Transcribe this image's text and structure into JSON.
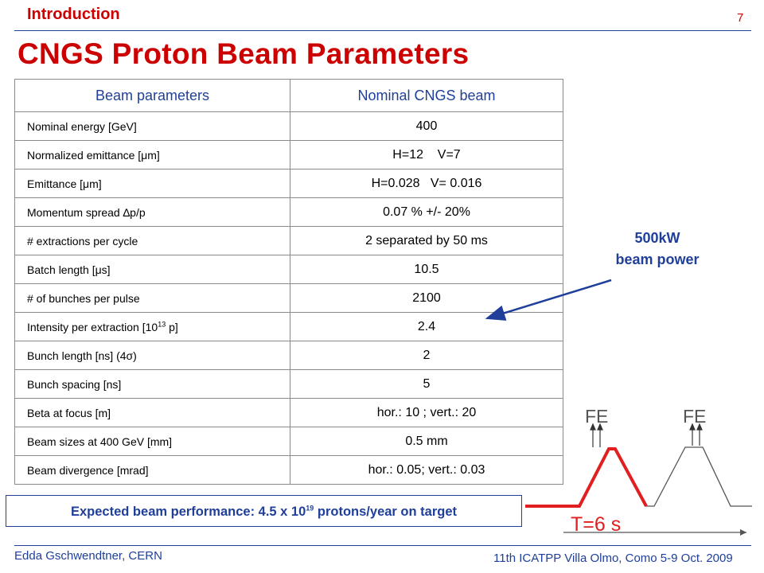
{
  "header": {
    "section": "Introduction",
    "page_number": "7",
    "title": "CNGS Proton Beam Parameters"
  },
  "table": {
    "columns": [
      "Beam parameters",
      "Nominal CNGS beam"
    ],
    "rows": [
      {
        "name": "Nominal energy [GeV]",
        "value": "400"
      },
      {
        "name": "Normalized emittance [μm]",
        "value": "H=12    V=7"
      },
      {
        "name": "Emittance [μm]",
        "value": "H=0.028   V= 0.016"
      },
      {
        "name": "Momentum spread ∆p/p",
        "value": "0.07 % +/- 20%"
      },
      {
        "name": "# extractions per cycle",
        "value": "2 separated by 50 ms"
      },
      {
        "name": "Batch length [μs]",
        "value": "10.5"
      },
      {
        "name": "# of bunches per pulse",
        "value": "2100"
      },
      {
        "name_pre": "Intensity per extraction [10",
        "name_sup": "13",
        "name_post": " p]",
        "value": "2.4"
      },
      {
        "name": "Bunch length [ns] (4σ)",
        "value": "2"
      },
      {
        "name": "Bunch spacing [ns]",
        "value": "5"
      },
      {
        "name": "Beta at focus [m]",
        "value": "hor.: 10 ; vert.: 20"
      },
      {
        "name": "Beam sizes at 400 GeV [mm]",
        "value": "0.5 mm"
      },
      {
        "name": "Beam divergence  [mrad]",
        "value": "hor.: 0.05; vert.: 0.03"
      }
    ]
  },
  "callout": {
    "line1": "500kW",
    "line2": "beam power"
  },
  "performance": {
    "text_pre": "Expected beam performance: 4.5 x 10",
    "sup": "19",
    "text_post": " protons/year on target"
  },
  "cycle_diagram": {
    "label_fe_1": "FE",
    "label_fe_2": "FE",
    "label_period": "T=6 s",
    "highlight_color": "#e02020",
    "trace_color": "#555555"
  },
  "footer": {
    "author": "Edda Gschwendtner, CERN",
    "conference": "11th ICATPP Villa Olmo, Como 5-9 Oct. 2009"
  },
  "colors": {
    "accent_red": "#cc0000",
    "accent_blue": "#1f3f9a"
  }
}
